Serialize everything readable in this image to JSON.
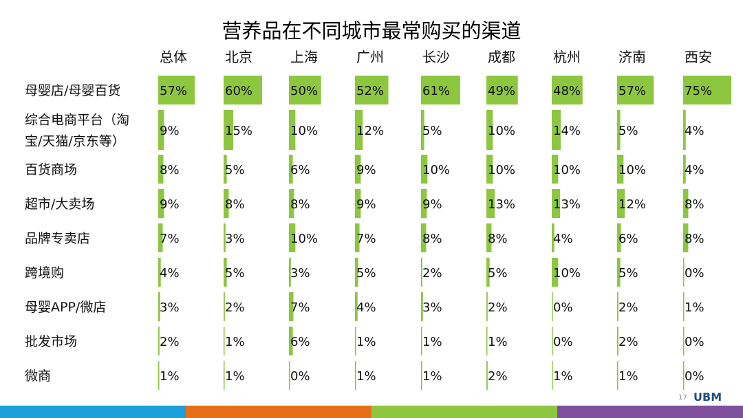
{
  "footer": {
    "page_number": "17",
    "brand": "UBM",
    "colors": [
      "#1aa0d8",
      "#e96e17",
      "#8dc63f",
      "#7f4f9c"
    ]
  },
  "colors": {
    "bar": "#8dc63f"
  },
  "chart_data": {
    "type": "table",
    "title": "营养品在不同城市最常购买的渠道",
    "columns": [
      "总体",
      "北京",
      "上海",
      "广州",
      "长沙",
      "成都",
      "杭州",
      "济南",
      "西安"
    ],
    "rows": [
      {
        "label": [
          "母婴店/母婴百货"
        ],
        "values": [
          57,
          60,
          50,
          52,
          61,
          49,
          48,
          57,
          75
        ]
      },
      {
        "label": [
          "综合电商平台（淘",
          "宝/天猫/京东等）"
        ],
        "values": [
          9,
          15,
          10,
          12,
          5,
          10,
          14,
          5,
          4
        ]
      },
      {
        "label": [
          "百货商场"
        ],
        "values": [
          8,
          5,
          6,
          9,
          10,
          10,
          10,
          10,
          4
        ]
      },
      {
        "label": [
          "超市/大卖场"
        ],
        "values": [
          9,
          8,
          8,
          9,
          9,
          13,
          13,
          12,
          8
        ]
      },
      {
        "label": [
          "品牌专卖店"
        ],
        "values": [
          7,
          3,
          10,
          7,
          8,
          8,
          4,
          6,
          8
        ]
      },
      {
        "label": [
          "跨境购"
        ],
        "values": [
          4,
          5,
          3,
          5,
          2,
          5,
          10,
          5,
          0
        ]
      },
      {
        "label": [
          "母婴APP/微店"
        ],
        "values": [
          3,
          2,
          7,
          4,
          3,
          2,
          0,
          2,
          1
        ]
      },
      {
        "label": [
          "批发市场"
        ],
        "values": [
          2,
          1,
          6,
          1,
          1,
          1,
          0,
          2,
          0
        ]
      },
      {
        "label": [
          "微商"
        ],
        "values": [
          1,
          1,
          0,
          1,
          1,
          2,
          1,
          1,
          0
        ]
      }
    ],
    "unit": "%",
    "value_range": [
      0,
      75
    ]
  }
}
